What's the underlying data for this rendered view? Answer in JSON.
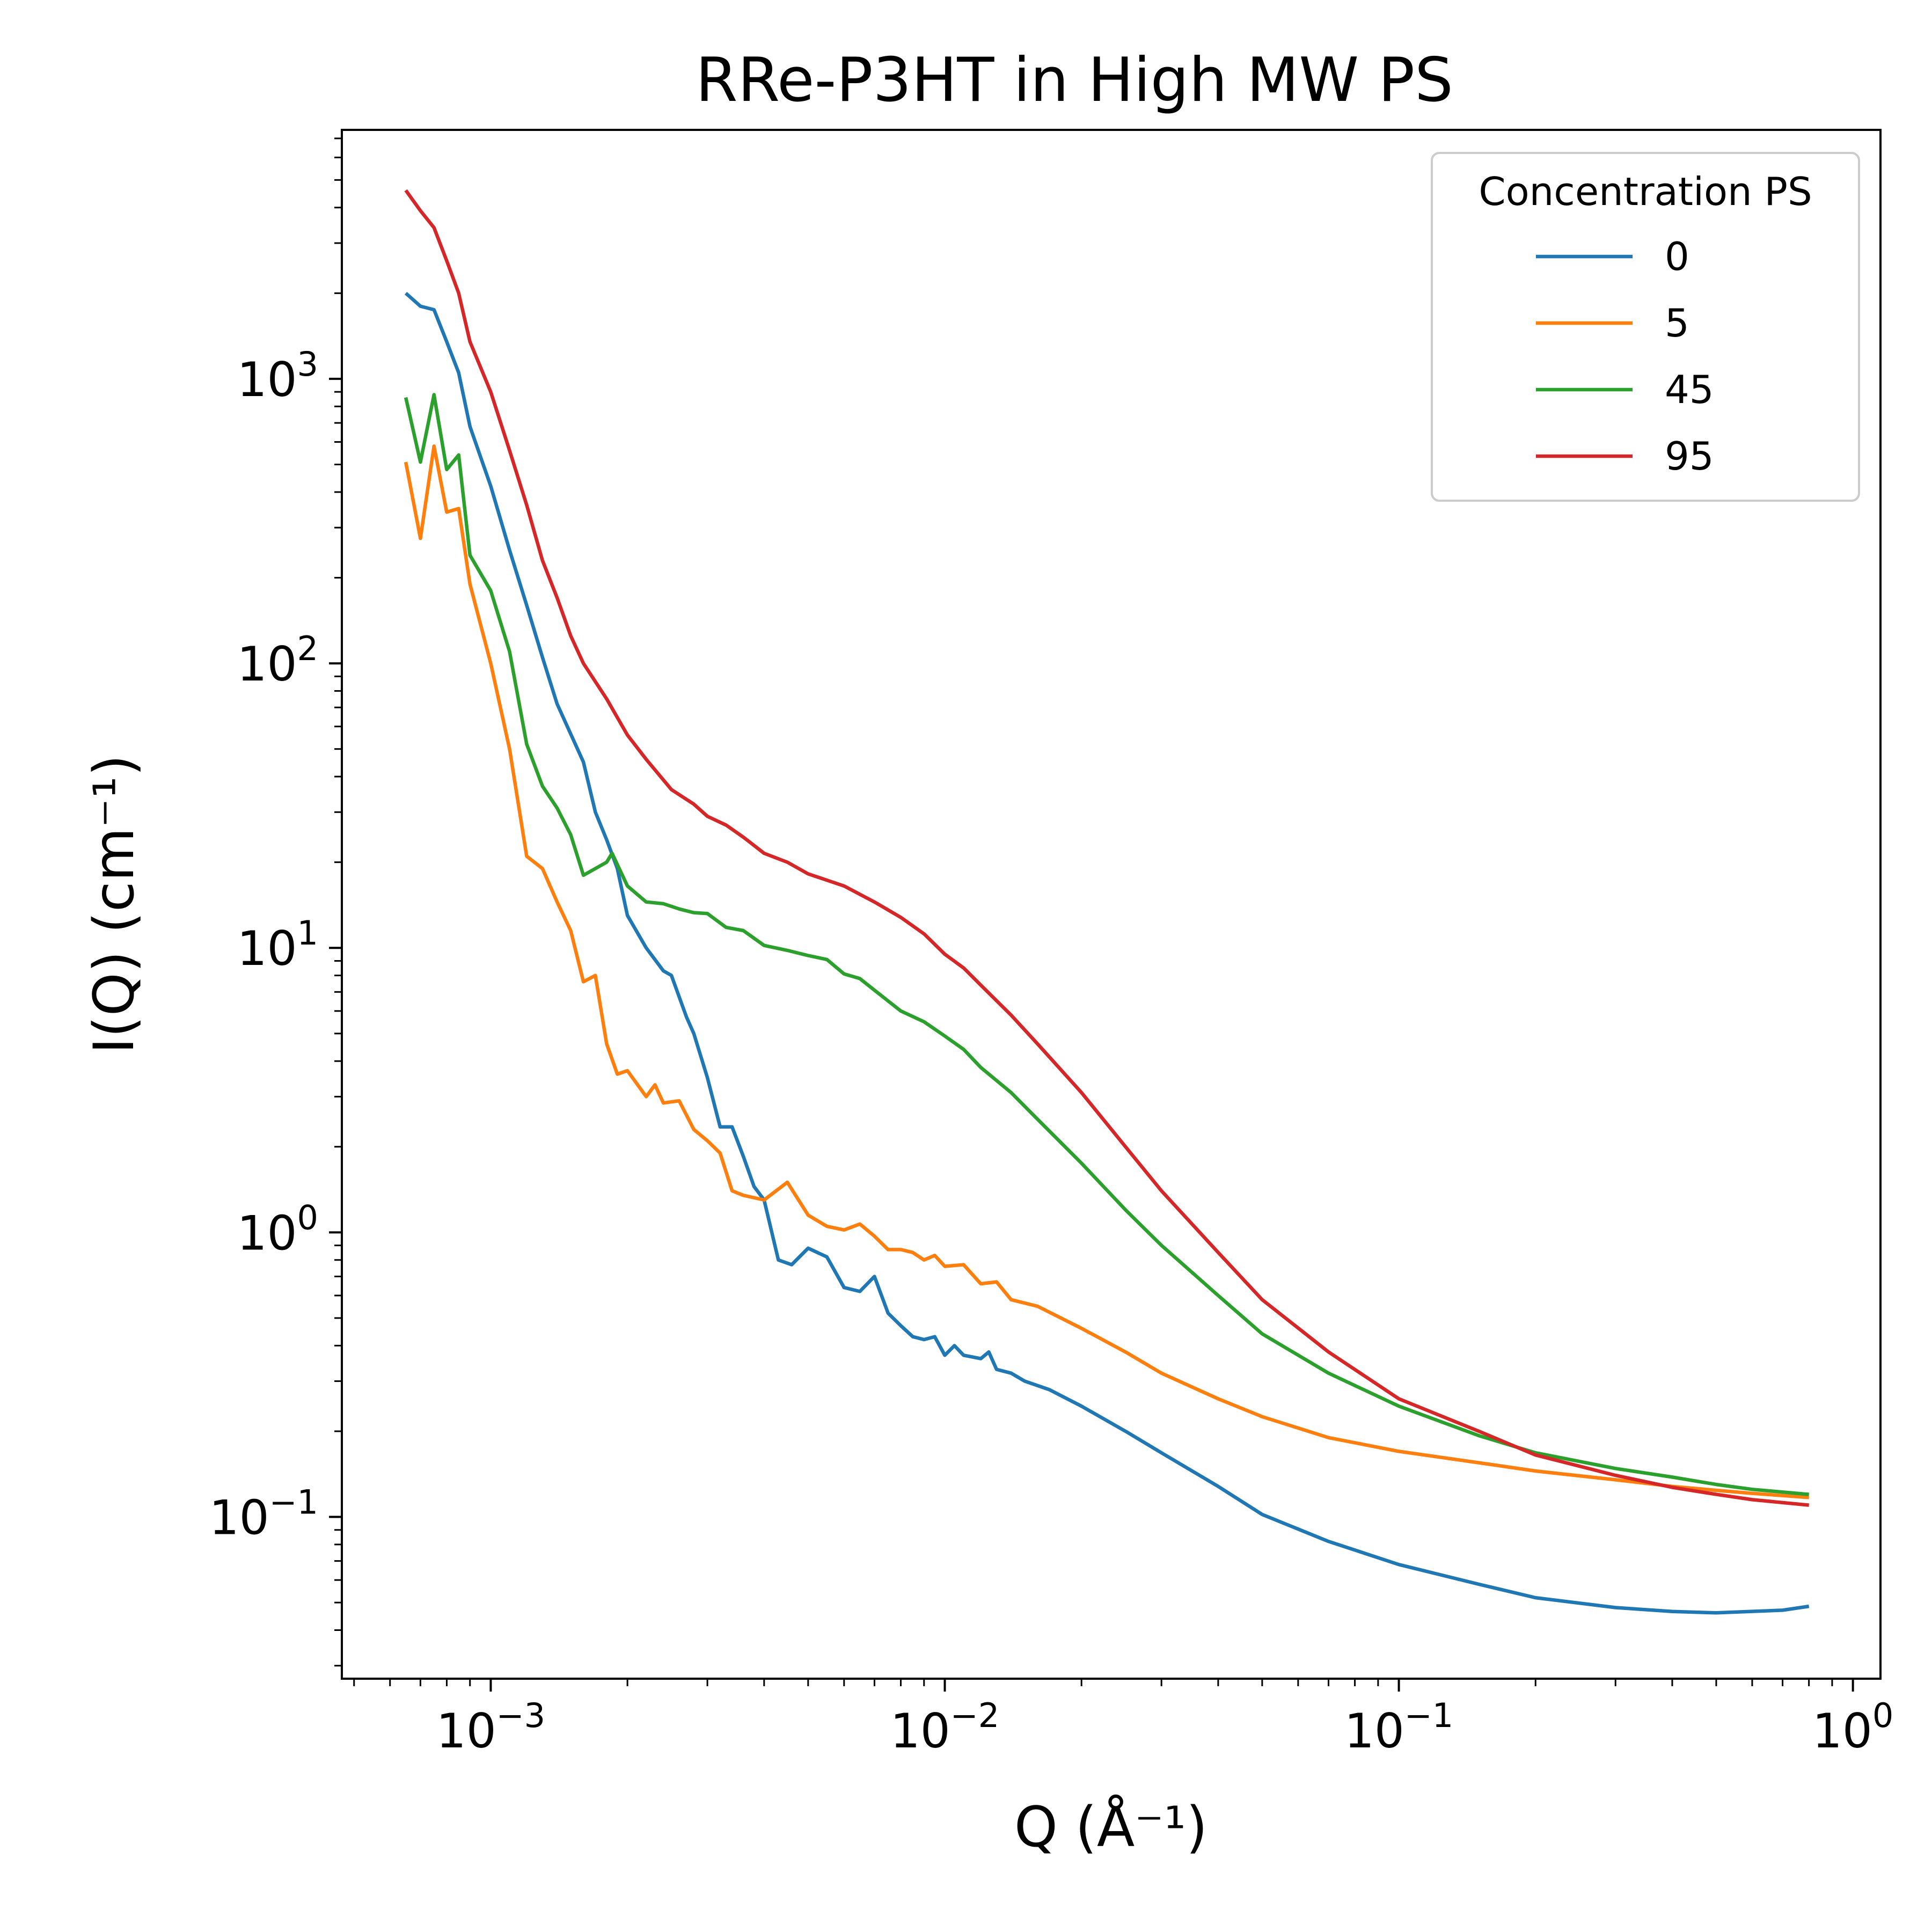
{
  "chart_data": {
    "type": "line",
    "title": "RRe-P3HT in High MW PS",
    "xlabel": "Q (Å⁻¹)",
    "ylabel": "I(Q) (cm⁻¹)",
    "xscale": "log",
    "yscale": "log",
    "xlim": [
      0.00047,
      1.15
    ],
    "ylim": [
      0.027,
      7500
    ],
    "grid": false,
    "legend": {
      "title": "Concentration PS",
      "placement": "top-right"
    },
    "x_ticks": [
      {
        "value": 0.001,
        "base": "10",
        "exp": "−3"
      },
      {
        "value": 0.01,
        "base": "10",
        "exp": "−2"
      },
      {
        "value": 0.1,
        "base": "10",
        "exp": "−1"
      },
      {
        "value": 1,
        "base": "10",
        "exp": "0"
      }
    ],
    "y_ticks": [
      {
        "value": 0.1,
        "base": "10",
        "exp": "−1"
      },
      {
        "value": 1,
        "base": "10",
        "exp": "0"
      },
      {
        "value": 10,
        "base": "10",
        "exp": "1"
      },
      {
        "value": 100,
        "base": "10",
        "exp": "2"
      },
      {
        "value": 1000,
        "base": "10",
        "exp": "3"
      }
    ],
    "series": [
      {
        "name": "0",
        "color": "#1f77b4",
        "points": [
          [
            0.00065,
            2000
          ],
          [
            0.0007,
            1800
          ],
          [
            0.00075,
            1750
          ],
          [
            0.0008,
            1350
          ],
          [
            0.00085,
            1050
          ],
          [
            0.0009,
            680
          ],
          [
            0.001,
            420
          ],
          [
            0.0011,
            250
          ],
          [
            0.0012,
            160
          ],
          [
            0.0013,
            105
          ],
          [
            0.0014,
            72
          ],
          [
            0.0016,
            45
          ],
          [
            0.0017,
            30
          ],
          [
            0.0018,
            24
          ],
          [
            0.0019,
            19
          ],
          [
            0.002,
            13
          ],
          [
            0.0022,
            10
          ],
          [
            0.0024,
            8.3
          ],
          [
            0.0025,
            8
          ],
          [
            0.0027,
            5.7
          ],
          [
            0.0028,
            5
          ],
          [
            0.003,
            3.5
          ],
          [
            0.0032,
            2.35
          ],
          [
            0.0034,
            2.35
          ],
          [
            0.0036,
            1.85
          ],
          [
            0.0038,
            1.45
          ],
          [
            0.004,
            1.3
          ],
          [
            0.0043,
            0.8
          ],
          [
            0.0046,
            0.77
          ],
          [
            0.005,
            0.88
          ],
          [
            0.0055,
            0.82
          ],
          [
            0.006,
            0.64
          ],
          [
            0.0065,
            0.62
          ],
          [
            0.007,
            0.7
          ],
          [
            0.0075,
            0.52
          ],
          [
            0.008,
            0.47
          ],
          [
            0.0085,
            0.43
          ],
          [
            0.009,
            0.42
          ],
          [
            0.0095,
            0.43
          ],
          [
            0.01,
            0.37
          ],
          [
            0.0105,
            0.4
          ],
          [
            0.011,
            0.37
          ],
          [
            0.012,
            0.36
          ],
          [
            0.0125,
            0.38
          ],
          [
            0.013,
            0.33
          ],
          [
            0.014,
            0.32
          ],
          [
            0.015,
            0.3
          ],
          [
            0.017,
            0.28
          ],
          [
            0.02,
            0.245
          ],
          [
            0.025,
            0.2
          ],
          [
            0.03,
            0.168
          ],
          [
            0.04,
            0.128
          ],
          [
            0.05,
            0.102
          ],
          [
            0.07,
            0.082
          ],
          [
            0.1,
            0.068
          ],
          [
            0.15,
            0.058
          ],
          [
            0.2,
            0.052
          ],
          [
            0.3,
            0.048
          ],
          [
            0.4,
            0.0465
          ],
          [
            0.5,
            0.046
          ],
          [
            0.7,
            0.047
          ],
          [
            0.8,
            0.0485
          ]
        ]
      },
      {
        "name": "5",
        "color": "#ff7f0e",
        "points": [
          [
            0.00065,
            510
          ],
          [
            0.0007,
            275
          ],
          [
            0.00075,
            580
          ],
          [
            0.0008,
            340
          ],
          [
            0.00085,
            350
          ],
          [
            0.0009,
            190
          ],
          [
            0.001,
            100
          ],
          [
            0.0011,
            50
          ],
          [
            0.0012,
            21
          ],
          [
            0.0013,
            19
          ],
          [
            0.0014,
            14.5
          ],
          [
            0.0015,
            11.5
          ],
          [
            0.0016,
            7.6
          ],
          [
            0.0017,
            8
          ],
          [
            0.0018,
            4.6
          ],
          [
            0.0019,
            3.6
          ],
          [
            0.002,
            3.7
          ],
          [
            0.0022,
            3
          ],
          [
            0.0023,
            3.3
          ],
          [
            0.0024,
            2.85
          ],
          [
            0.0026,
            2.9
          ],
          [
            0.0028,
            2.3
          ],
          [
            0.003,
            2.1
          ],
          [
            0.0032,
            1.9
          ],
          [
            0.0034,
            1.4
          ],
          [
            0.0036,
            1.35
          ],
          [
            0.004,
            1.3
          ],
          [
            0.0045,
            1.5
          ],
          [
            0.005,
            1.15
          ],
          [
            0.0055,
            1.05
          ],
          [
            0.006,
            1.02
          ],
          [
            0.0065,
            1.07
          ],
          [
            0.007,
            0.97
          ],
          [
            0.0075,
            0.87
          ],
          [
            0.008,
            0.87
          ],
          [
            0.0085,
            0.85
          ],
          [
            0.009,
            0.8
          ],
          [
            0.0095,
            0.83
          ],
          [
            0.01,
            0.76
          ],
          [
            0.011,
            0.77
          ],
          [
            0.012,
            0.66
          ],
          [
            0.013,
            0.67
          ],
          [
            0.014,
            0.58
          ],
          [
            0.016,
            0.55
          ],
          [
            0.02,
            0.46
          ],
          [
            0.025,
            0.38
          ],
          [
            0.03,
            0.32
          ],
          [
            0.04,
            0.26
          ],
          [
            0.05,
            0.225
          ],
          [
            0.07,
            0.19
          ],
          [
            0.1,
            0.17
          ],
          [
            0.15,
            0.155
          ],
          [
            0.2,
            0.145
          ],
          [
            0.3,
            0.135
          ],
          [
            0.4,
            0.128
          ],
          [
            0.5,
            0.124
          ],
          [
            0.6,
            0.121
          ],
          [
            0.8,
            0.117
          ]
        ]
      },
      {
        "name": "45",
        "color": "#2ca02c",
        "points": [
          [
            0.00065,
            860
          ],
          [
            0.0007,
            510
          ],
          [
            0.00075,
            880
          ],
          [
            0.0008,
            480
          ],
          [
            0.00085,
            540
          ],
          [
            0.0009,
            240
          ],
          [
            0.001,
            180
          ],
          [
            0.0011,
            110
          ],
          [
            0.0012,
            52
          ],
          [
            0.0013,
            37
          ],
          [
            0.0014,
            31
          ],
          [
            0.0015,
            25
          ],
          [
            0.0016,
            18
          ],
          [
            0.0017,
            19
          ],
          [
            0.0018,
            20
          ],
          [
            0.00185,
            21.5
          ],
          [
            0.002,
            16.5
          ],
          [
            0.0022,
            14.5
          ],
          [
            0.0024,
            14.3
          ],
          [
            0.0026,
            13.7
          ],
          [
            0.0028,
            13.3
          ],
          [
            0.003,
            13.2
          ],
          [
            0.0033,
            11.8
          ],
          [
            0.0036,
            11.5
          ],
          [
            0.004,
            10.2
          ],
          [
            0.0045,
            9.8
          ],
          [
            0.005,
            9.4
          ],
          [
            0.0055,
            9.1
          ],
          [
            0.006,
            8.1
          ],
          [
            0.0065,
            7.8
          ],
          [
            0.007,
            7.1
          ],
          [
            0.008,
            6
          ],
          [
            0.009,
            5.5
          ],
          [
            0.01,
            4.9
          ],
          [
            0.011,
            4.4
          ],
          [
            0.012,
            3.8
          ],
          [
            0.014,
            3.1
          ],
          [
            0.016,
            2.5
          ],
          [
            0.02,
            1.75
          ],
          [
            0.025,
            1.2
          ],
          [
            0.03,
            0.9
          ],
          [
            0.04,
            0.6
          ],
          [
            0.05,
            0.44
          ],
          [
            0.07,
            0.32
          ],
          [
            0.1,
            0.245
          ],
          [
            0.15,
            0.193
          ],
          [
            0.2,
            0.168
          ],
          [
            0.3,
            0.148
          ],
          [
            0.4,
            0.138
          ],
          [
            0.5,
            0.13
          ],
          [
            0.6,
            0.125
          ],
          [
            0.8,
            0.12
          ]
        ]
      },
      {
        "name": "95",
        "color": "#d62728",
        "points": [
          [
            0.00065,
            4600
          ],
          [
            0.0007,
            3900
          ],
          [
            0.00075,
            3400
          ],
          [
            0.0008,
            2600
          ],
          [
            0.00085,
            2000
          ],
          [
            0.0009,
            1350
          ],
          [
            0.001,
            900
          ],
          [
            0.0011,
            560
          ],
          [
            0.0012,
            360
          ],
          [
            0.0013,
            230
          ],
          [
            0.0014,
            170
          ],
          [
            0.0015,
            125
          ],
          [
            0.0016,
            100
          ],
          [
            0.0018,
            75
          ],
          [
            0.002,
            56
          ],
          [
            0.0022,
            46
          ],
          [
            0.0025,
            36
          ],
          [
            0.0028,
            32
          ],
          [
            0.003,
            29
          ],
          [
            0.0033,
            27
          ],
          [
            0.0036,
            24.5
          ],
          [
            0.004,
            21.5
          ],
          [
            0.0045,
            20
          ],
          [
            0.005,
            18.2
          ],
          [
            0.006,
            16.5
          ],
          [
            0.007,
            14.5
          ],
          [
            0.008,
            12.8
          ],
          [
            0.009,
            11.2
          ],
          [
            0.01,
            9.5
          ],
          [
            0.011,
            8.5
          ],
          [
            0.012,
            7.4
          ],
          [
            0.014,
            5.8
          ],
          [
            0.016,
            4.6
          ],
          [
            0.02,
            3.1
          ],
          [
            0.025,
            2
          ],
          [
            0.03,
            1.4
          ],
          [
            0.04,
            0.85
          ],
          [
            0.05,
            0.58
          ],
          [
            0.07,
            0.38
          ],
          [
            0.1,
            0.26
          ],
          [
            0.15,
            0.2
          ],
          [
            0.2,
            0.165
          ],
          [
            0.3,
            0.14
          ],
          [
            0.4,
            0.127
          ],
          [
            0.5,
            0.12
          ],
          [
            0.6,
            0.115
          ],
          [
            0.8,
            0.11
          ]
        ]
      }
    ]
  }
}
